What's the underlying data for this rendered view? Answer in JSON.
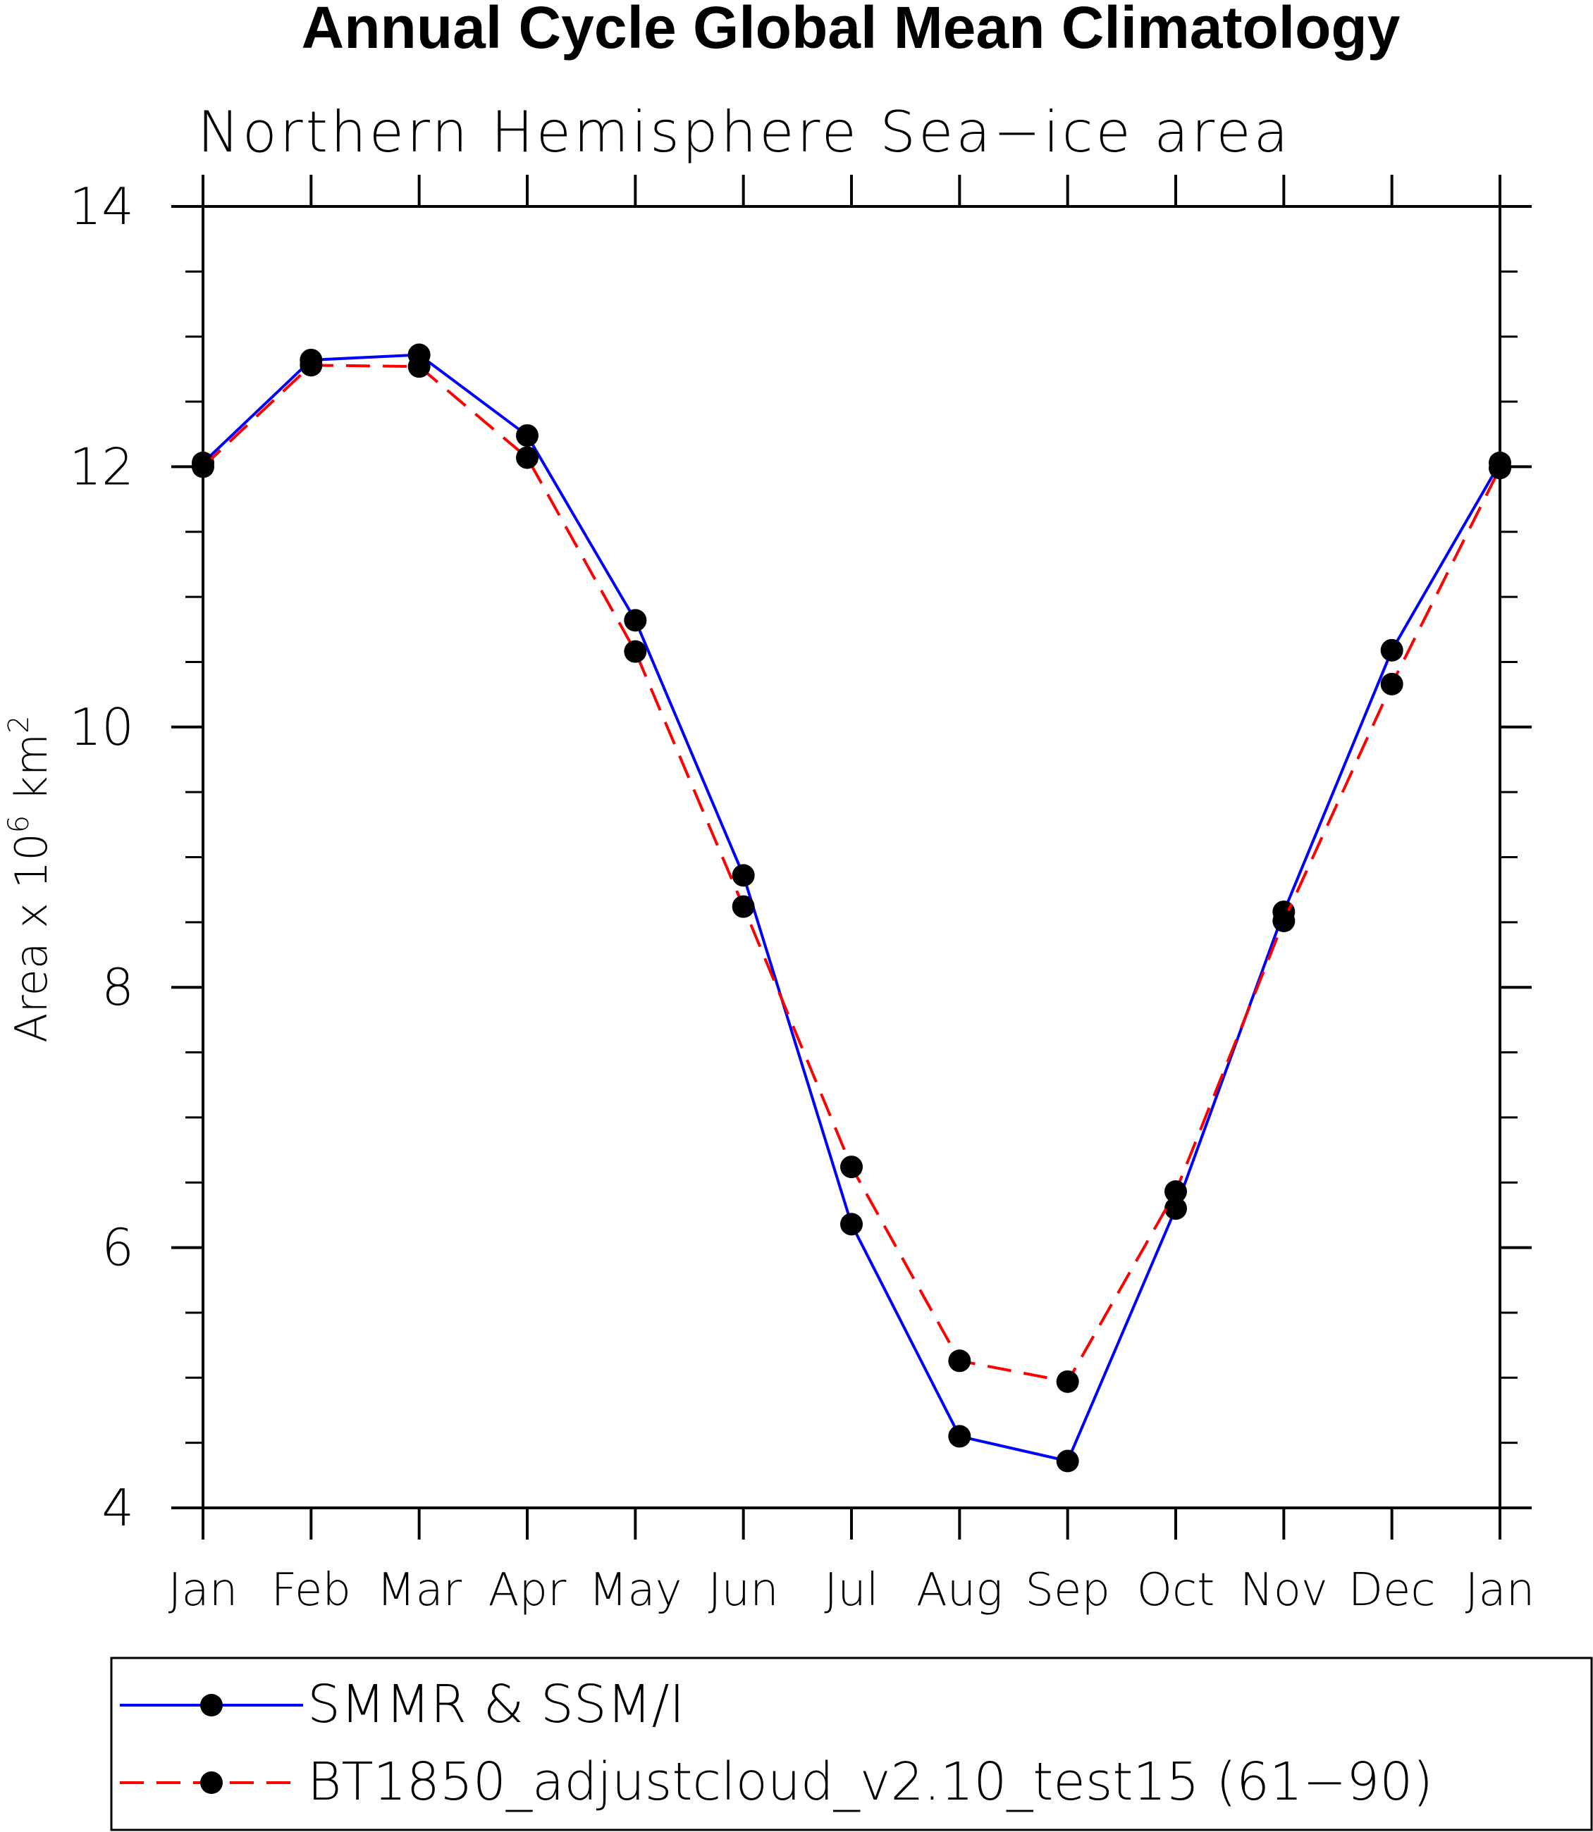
{
  "chart_data": {
    "type": "line",
    "title": "Annual Cycle Global Mean Climatology",
    "subtitle": "Northern Hemisphere Sea−ice area",
    "ylabel_main": "Area x 10",
    "ylabel_exponent": "6",
    "ylabel_unit": " km",
    "ylabel_unit_exponent": "2",
    "ylim": [
      4,
      14
    ],
    "y_major_ticks": [
      4,
      6,
      8,
      10,
      12,
      14
    ],
    "y_minor_step": 0.5,
    "categories": [
      "Jan",
      "Feb",
      "Mar",
      "Apr",
      "May",
      "Jun",
      "Jul",
      "Aug",
      "Sep",
      "Oct",
      "Nov",
      "Dec",
      "Jan"
    ],
    "grid": false,
    "legend_position": "bottom",
    "series": [
      {
        "name": "SMMR & SSM/I",
        "color": "#0000ff",
        "dash": "solid",
        "values": [
          12.03,
          12.82,
          12.86,
          12.24,
          10.82,
          8.86,
          6.18,
          4.55,
          4.36,
          6.3,
          8.58,
          10.59,
          12.03
        ]
      },
      {
        "name": "BT1850_adjustcloud_v2.10_test15 (61−90)",
        "color": "#ff0000",
        "dash": "dashed",
        "values": [
          12.0,
          12.78,
          12.77,
          12.07,
          10.58,
          8.62,
          6.62,
          5.13,
          4.97,
          6.43,
          8.51,
          10.33,
          11.99
        ]
      }
    ]
  }
}
